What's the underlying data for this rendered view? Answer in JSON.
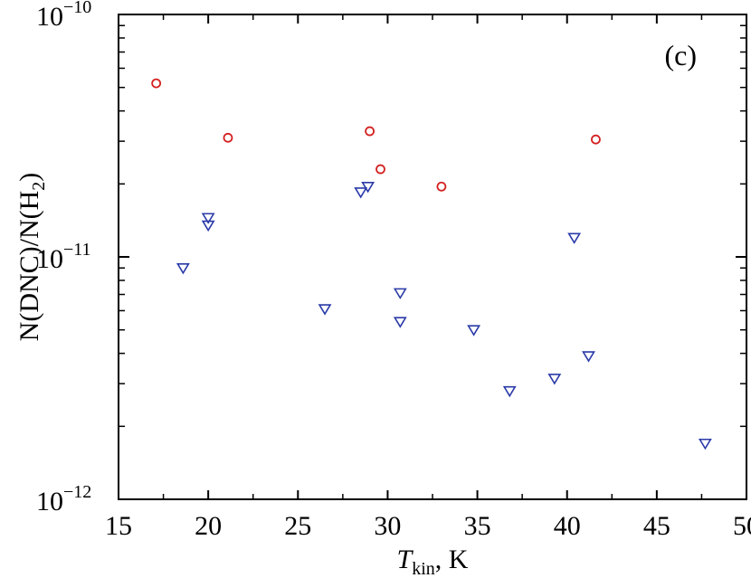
{
  "chart_data": {
    "type": "scatter",
    "panel_label": "(c)",
    "xlabel": {
      "main": "T",
      "sub": "kin",
      "suffix": ", K"
    },
    "ylabel": {
      "prefix": "N(DNC)/N(H",
      "sub": "2",
      "suffix": ")"
    },
    "xlim": [
      15,
      50
    ],
    "ylim": [
      1e-12,
      1e-10
    ],
    "yscale": "log",
    "x_ticks": [
      15,
      20,
      25,
      30,
      35,
      40,
      45,
      50
    ],
    "y_ticks": [
      {
        "value": 1e-10,
        "base": "10",
        "exp": "−10"
      },
      {
        "value": 1e-11,
        "base": "10",
        "exp": "−11"
      },
      {
        "value": 1e-12,
        "base": "10",
        "exp": "−12"
      }
    ],
    "grid": false,
    "series": [
      {
        "marker": "circle",
        "color": "#d42020",
        "points": [
          {
            "x": 17.1,
            "y": 5.2e-11
          },
          {
            "x": 21.1,
            "y": 3.1e-11
          },
          {
            "x": 29.0,
            "y": 3.3e-11
          },
          {
            "x": 29.6,
            "y": 2.3e-11
          },
          {
            "x": 33.0,
            "y": 1.95e-11
          },
          {
            "x": 41.6,
            "y": 3.05e-11
          }
        ]
      },
      {
        "marker": "triangle-down",
        "color": "#2a3aa8",
        "points": [
          {
            "x": 18.6,
            "y": 9e-12
          },
          {
            "x": 20.0,
            "y": 1.45e-11
          },
          {
            "x": 20.0,
            "y": 1.35e-11
          },
          {
            "x": 26.5,
            "y": 6.1e-12
          },
          {
            "x": 28.5,
            "y": 1.85e-11
          },
          {
            "x": 28.9,
            "y": 1.95e-11
          },
          {
            "x": 30.7,
            "y": 7.1e-12
          },
          {
            "x": 30.7,
            "y": 5.4e-12
          },
          {
            "x": 34.8,
            "y": 5e-12
          },
          {
            "x": 36.8,
            "y": 2.8e-12
          },
          {
            "x": 39.3,
            "y": 3.15e-12
          },
          {
            "x": 40.4,
            "y": 1.2e-11
          },
          {
            "x": 41.2,
            "y": 3.9e-12
          },
          {
            "x": 47.7,
            "y": 1.7e-12
          }
        ]
      }
    ]
  }
}
